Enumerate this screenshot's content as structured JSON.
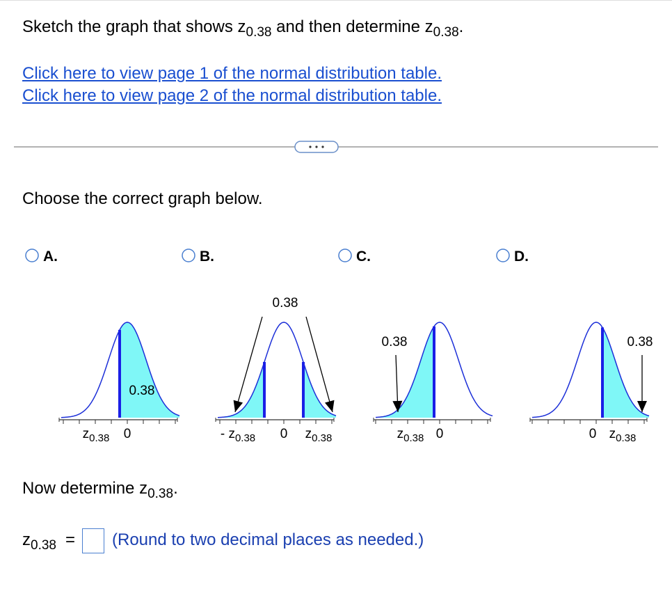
{
  "question": [
    {
      "text": "Sketch the graph that shows "
    },
    {
      "symbol": "z",
      "subscript": "0.38"
    },
    {
      "text": " and then determine "
    },
    {
      "symbol": "z",
      "subscript": "0.38"
    },
    {
      "text": "."
    }
  ],
  "links": [
    "Click here to view page 1 of the normal distribution table.",
    "Click here to view page 2 of the normal distribution table."
  ],
  "prompt": "Choose the correct graph below.",
  "options": [
    {
      "letter": "A.",
      "area_label": "0.38",
      "axis_labels": [
        [
          {
            "symbol": "z",
            "subscript": "0.38"
          }
        ],
        [
          {
            "text": "0"
          }
        ]
      ]
    },
    {
      "letter": "B.",
      "area_label": "0.38",
      "axis_labels": [
        [
          {
            "text": "-"
          },
          {
            "symbol": "z",
            "subscript": "0.38"
          }
        ],
        [
          {
            "text": "0"
          }
        ],
        [
          {
            "symbol": "z",
            "subscript": "0.38"
          }
        ]
      ]
    },
    {
      "letter": "C.",
      "area_label": "0.38",
      "axis_labels": [
        [
          {
            "symbol": "z",
            "subscript": "0.38"
          }
        ],
        [
          {
            "text": "0"
          }
        ]
      ]
    },
    {
      "letter": "D.",
      "area_label": "0.38",
      "axis_labels": [
        [
          {
            "text": "0"
          }
        ],
        [
          {
            "symbol": "z",
            "subscript": "0.38"
          }
        ]
      ]
    }
  ],
  "now": [
    {
      "text": "Now determine "
    },
    {
      "symbol": "z",
      "subscript": "0.38"
    },
    {
      "text": "."
    }
  ],
  "answer": {
    "label": [
      {
        "symbol": "z",
        "subscript": "0.38"
      }
    ],
    "equals": "=",
    "hint": "(Round to two decimal places as needed.)"
  }
}
